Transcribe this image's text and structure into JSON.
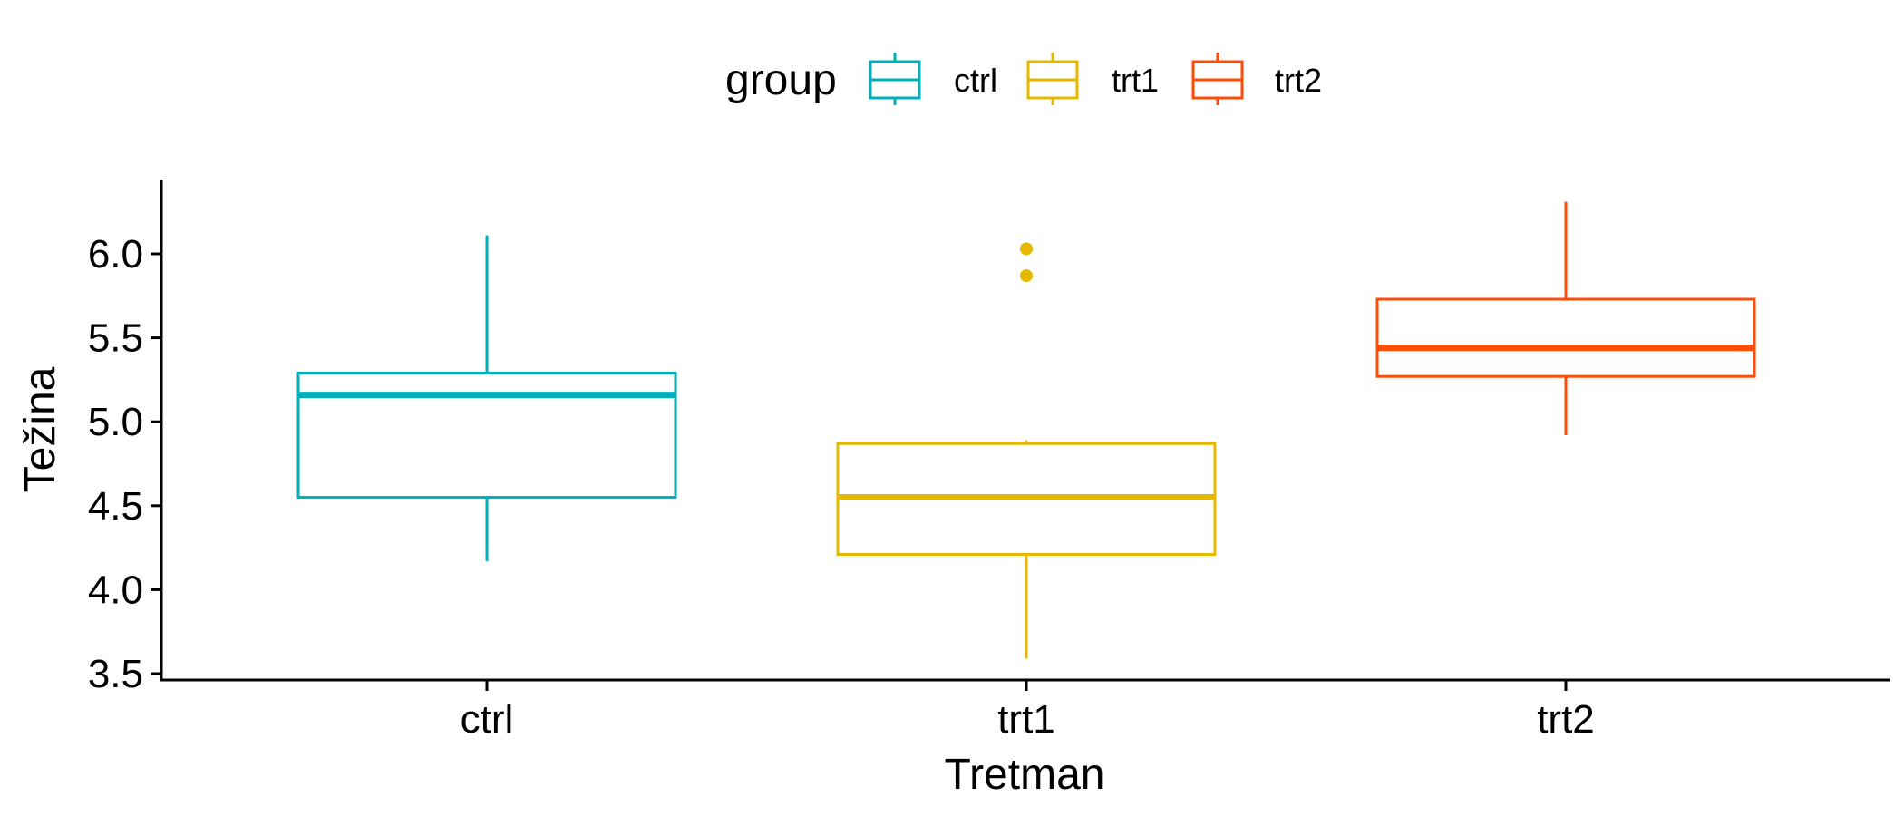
{
  "chart_data": {
    "type": "boxplot",
    "title": "",
    "xlabel": "Tretman",
    "ylabel": "Težina",
    "ylim": [
      3.5,
      6.3
    ],
    "yticks": [
      3.5,
      4.0,
      4.5,
      5.0,
      5.5,
      6.0
    ],
    "ytick_labels": [
      "3.5",
      "4.0",
      "4.5",
      "5.0",
      "5.5",
      "6.0"
    ],
    "categories": [
      "ctrl",
      "trt1",
      "trt2"
    ],
    "grid": false,
    "legend": {
      "title": "group",
      "position": "top",
      "entries": [
        "ctrl",
        "trt1",
        "trt2"
      ]
    },
    "series": [
      {
        "name": "ctrl",
        "color": "#00AFBB",
        "min": 4.17,
        "q1": 4.55,
        "median": 5.16,
        "q3": 5.29,
        "max": 6.11,
        "outliers": []
      },
      {
        "name": "trt1",
        "color": "#E7B800",
        "min": 3.59,
        "q1": 4.21,
        "median": 4.55,
        "q3": 4.87,
        "max": 4.89,
        "outliers": [
          5.87,
          6.03
        ]
      },
      {
        "name": "trt2",
        "color": "#FC4E07",
        "min": 4.92,
        "q1": 5.27,
        "median": 5.44,
        "q3": 5.73,
        "max": 6.31,
        "outliers": []
      }
    ]
  }
}
